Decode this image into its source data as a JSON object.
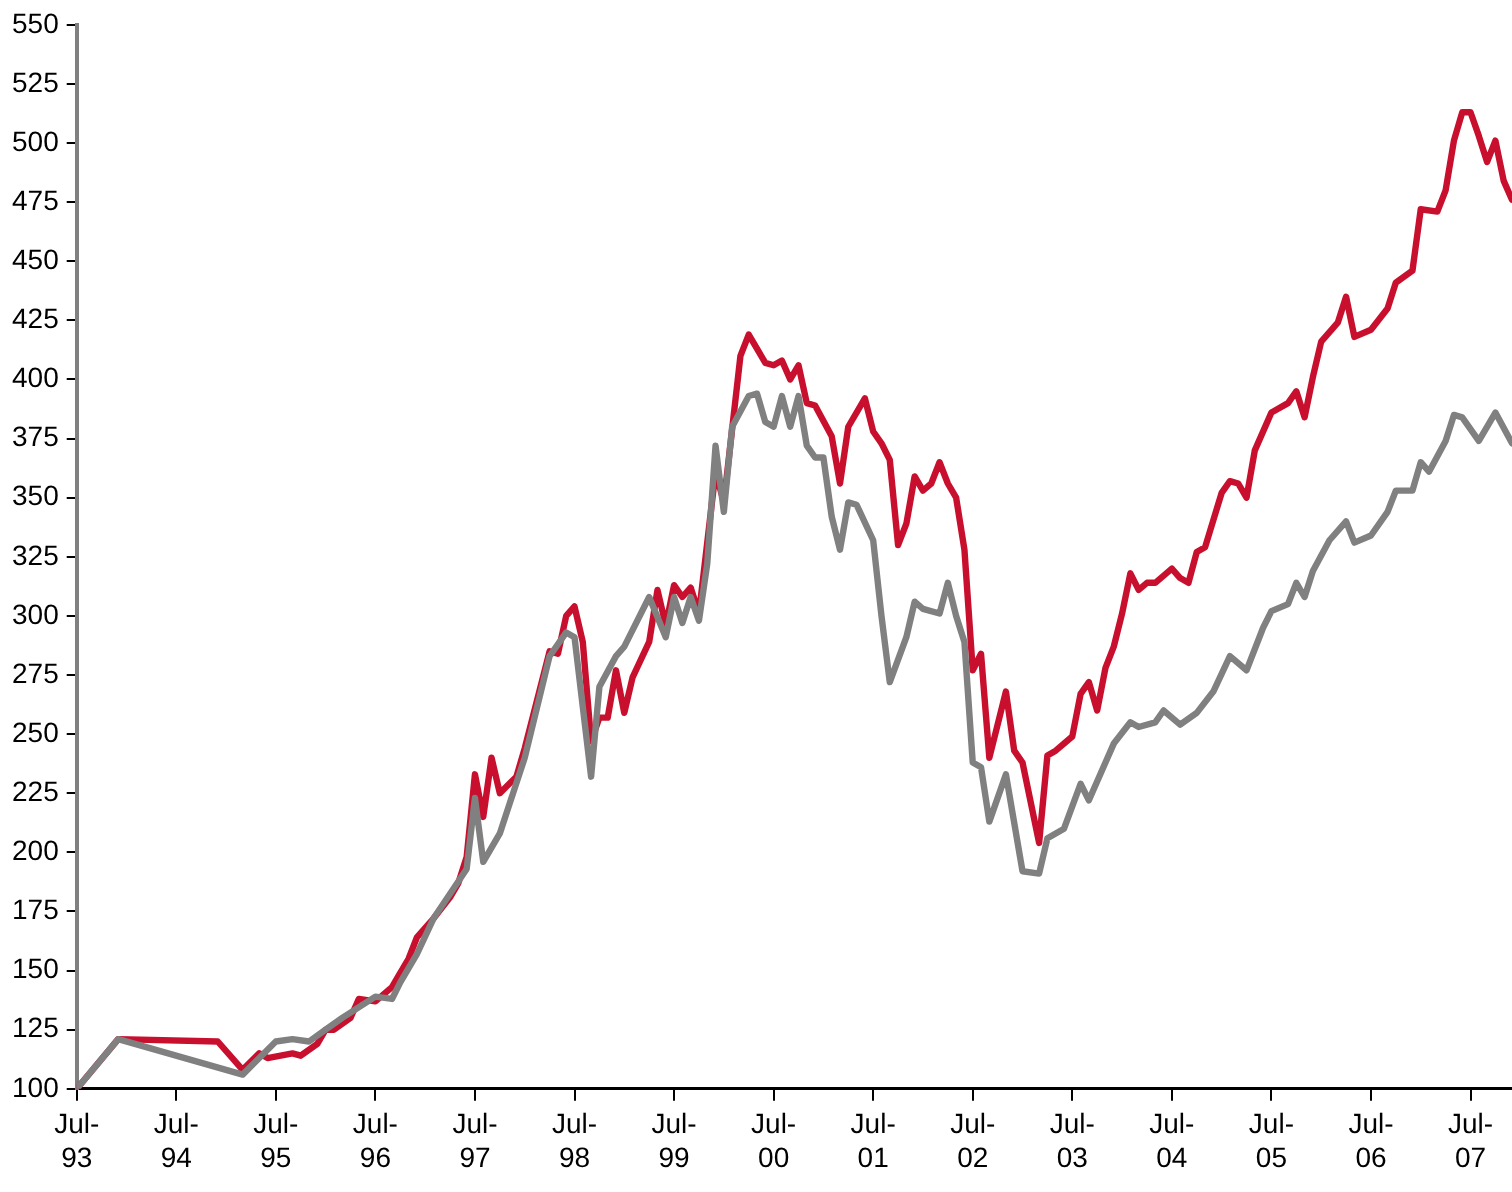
{
  "chart_data": {
    "type": "line",
    "xlim": [
      "1993-07",
      "2007-12"
    ],
    "ylim": [
      100,
      550
    ],
    "xticks": [
      {
        "value": "1993-07",
        "label": "Jul-\n93"
      },
      {
        "value": "1994-07",
        "label": "Jul-\n94"
      },
      {
        "value": "1995-07",
        "label": "Jul-\n95"
      },
      {
        "value": "1996-07",
        "label": "Jul-\n96"
      },
      {
        "value": "1997-07",
        "label": "Jul-\n97"
      },
      {
        "value": "1998-07",
        "label": "Jul-\n98"
      },
      {
        "value": "1999-07",
        "label": "Jul-\n99"
      },
      {
        "value": "2000-07",
        "label": "Jul-\n00"
      },
      {
        "value": "2001-07",
        "label": "Jul-\n01"
      },
      {
        "value": "2002-07",
        "label": "Jul-\n02"
      },
      {
        "value": "2003-07",
        "label": "Jul-\n03"
      },
      {
        "value": "2004-07",
        "label": "Jul-\n04"
      },
      {
        "value": "2005-07",
        "label": "Jul-\n05"
      },
      {
        "value": "2006-07",
        "label": "Jul-\n06"
      },
      {
        "value": "2007-07",
        "label": "Jul-\n07"
      }
    ],
    "yticks": [
      100,
      125,
      150,
      175,
      200,
      225,
      250,
      275,
      300,
      325,
      350,
      375,
      400,
      425,
      450,
      475,
      500,
      525,
      550
    ],
    "marker": "none",
    "line_style": "solid",
    "legend": false,
    "series": [
      {
        "color": "#808080",
        "x": [
          "1993-07",
          "1993-12",
          "1995-03",
          "1995-07",
          "1995-09",
          "1995-11",
          "1996-01",
          "1996-03",
          "1996-07",
          "1996-09",
          "1996-10",
          "1996-12",
          "1997-02",
          "1997-06",
          "1997-07",
          "1997-08",
          "1997-10",
          "1998-01",
          "1998-04",
          "1998-06",
          "1998-07",
          "1998-09",
          "1998-10",
          "1998-12",
          "1999-01",
          "1999-04",
          "1999-06",
          "1999-07",
          "1999-08",
          "1999-09",
          "1999-10",
          "1999-11",
          "1999-12",
          "2000-01",
          "2000-02",
          "2000-04",
          "2000-05",
          "2000-06",
          "2000-07",
          "2000-08",
          "2000-09",
          "2000-10",
          "2000-11",
          "2000-12",
          "2001-01",
          "2001-02",
          "2001-03",
          "2001-04",
          "2001-05",
          "2001-07",
          "2001-08",
          "2001-09",
          "2001-11",
          "2001-12",
          "2002-01",
          "2002-03",
          "2002-04",
          "2002-05",
          "2002-06",
          "2002-07",
          "2002-08",
          "2002-09",
          "2002-11",
          "2003-01",
          "2003-03",
          "2003-04",
          "2003-06",
          "2003-08",
          "2003-09",
          "2003-11",
          "2003-12",
          "2004-02",
          "2004-03",
          "2004-05",
          "2004-06",
          "2004-08",
          "2004-10",
          "2004-12",
          "2005-02",
          "2005-04",
          "2005-06",
          "2005-07",
          "2005-09",
          "2005-10",
          "2005-11",
          "2005-12",
          "2006-02",
          "2006-04",
          "2006-05",
          "2006-07",
          "2006-09",
          "2006-10",
          "2006-12",
          "2007-01",
          "2007-02",
          "2007-04",
          "2007-05",
          "2007-06",
          "2007-08",
          "2007-10",
          "2007-12"
        ],
        "values": [
          100,
          121,
          106,
          120,
          121,
          120,
          125,
          130,
          139,
          138,
          145,
          157,
          172,
          193,
          223,
          196,
          208,
          240,
          283,
          293,
          291,
          232,
          270,
          283,
          287,
          308,
          291,
          308,
          297,
          308,
          298,
          322,
          372,
          344,
          380,
          393,
          394,
          382,
          380,
          393,
          380,
          393,
          372,
          367,
          367,
          342,
          328,
          348,
          347,
          332,
          300,
          272,
          291,
          306,
          303,
          301,
          314,
          300,
          289,
          238,
          236,
          213,
          233,
          192,
          191,
          206,
          210,
          229,
          222,
          238,
          246,
          255,
          253,
          255,
          260,
          254,
          259,
          268,
          283,
          277,
          295,
          302,
          305,
          314,
          308,
          319,
          332,
          340,
          331,
          334,
          344,
          353,
          353,
          365,
          361,
          374,
          385,
          384,
          374,
          386,
          373
        ]
      },
      {
        "color": "#c8102e",
        "x": [
          "1993-07",
          "1993-12",
          "1994-12",
          "1995-03",
          "1995-05",
          "1995-06",
          "1995-09",
          "1995-10",
          "1995-12",
          "1996-01",
          "1996-02",
          "1996-04",
          "1996-05",
          "1996-07",
          "1996-09",
          "1996-10",
          "1996-11",
          "1996-12",
          "1997-02",
          "1997-04",
          "1997-05",
          "1997-06",
          "1997-07",
          "1997-08",
          "1997-09",
          "1997-10",
          "1997-12",
          "1998-01",
          "1998-04",
          "1998-05",
          "1998-06",
          "1998-07",
          "1998-08",
          "1998-09",
          "1998-10",
          "1998-11",
          "1998-12",
          "1999-01",
          "1999-02",
          "1999-04",
          "1999-05",
          "1999-06",
          "1999-07",
          "1999-08",
          "1999-09",
          "1999-10",
          "1999-12",
          "2000-01",
          "2000-03",
          "2000-04",
          "2000-06",
          "2000-07",
          "2000-08",
          "2000-09",
          "2000-10",
          "2000-11",
          "2000-12",
          "2001-02",
          "2001-03",
          "2001-04",
          "2001-06",
          "2001-07",
          "2001-08",
          "2001-09",
          "2001-10",
          "2001-11",
          "2001-12",
          "2002-01",
          "2002-02",
          "2002-03",
          "2002-04",
          "2002-05",
          "2002-06",
          "2002-07",
          "2002-08",
          "2002-09",
          "2002-11",
          "2002-12",
          "2003-01",
          "2003-03",
          "2003-04",
          "2003-05",
          "2003-07",
          "2003-08",
          "2003-09",
          "2003-10",
          "2003-11",
          "2003-12",
          "2004-01",
          "2004-02",
          "2004-03",
          "2004-04",
          "2004-05",
          "2004-07",
          "2004-08",
          "2004-09",
          "2004-10",
          "2004-11",
          "2005-01",
          "2005-02",
          "2005-03",
          "2005-04",
          "2005-05",
          "2005-07",
          "2005-09",
          "2005-10",
          "2005-11",
          "2005-12",
          "2006-01",
          "2006-03",
          "2006-04",
          "2006-05",
          "2006-07",
          "2006-09",
          "2006-10",
          "2006-12",
          "2007-01",
          "2007-03",
          "2007-04",
          "2007-05",
          "2007-06",
          "2007-07",
          "2007-08",
          "2007-09",
          "2007-10",
          "2007-11",
          "2007-12"
        ],
        "values": [
          100,
          121,
          120,
          108,
          115,
          113,
          115,
          114,
          119,
          125,
          125,
          130,
          138,
          137,
          143,
          149,
          155,
          164,
          172,
          181,
          187,
          198,
          233,
          215,
          240,
          225,
          232,
          244,
          285,
          284,
          300,
          304,
          289,
          247,
          257,
          257,
          277,
          259,
          274,
          289,
          311,
          296,
          313,
          308,
          312,
          301,
          361,
          348,
          410,
          419,
          407,
          406,
          408,
          400,
          406,
          390,
          389,
          376,
          356,
          380,
          392,
          378,
          373,
          366,
          330,
          339,
          359,
          353,
          356,
          365,
          356,
          350,
          328,
          277,
          284,
          240,
          268,
          243,
          238,
          204,
          241,
          243,
          249,
          267,
          272,
          260,
          278,
          287,
          301,
          318,
          311,
          314,
          314,
          320,
          316,
          314,
          327,
          329,
          352,
          357,
          356,
          350,
          370,
          386,
          390,
          395,
          384,
          401,
          416,
          424,
          435,
          418,
          421,
          430,
          441,
          446,
          472,
          471,
          480,
          501,
          513,
          513,
          503,
          492,
          501,
          484,
          476
        ]
      }
    ]
  }
}
